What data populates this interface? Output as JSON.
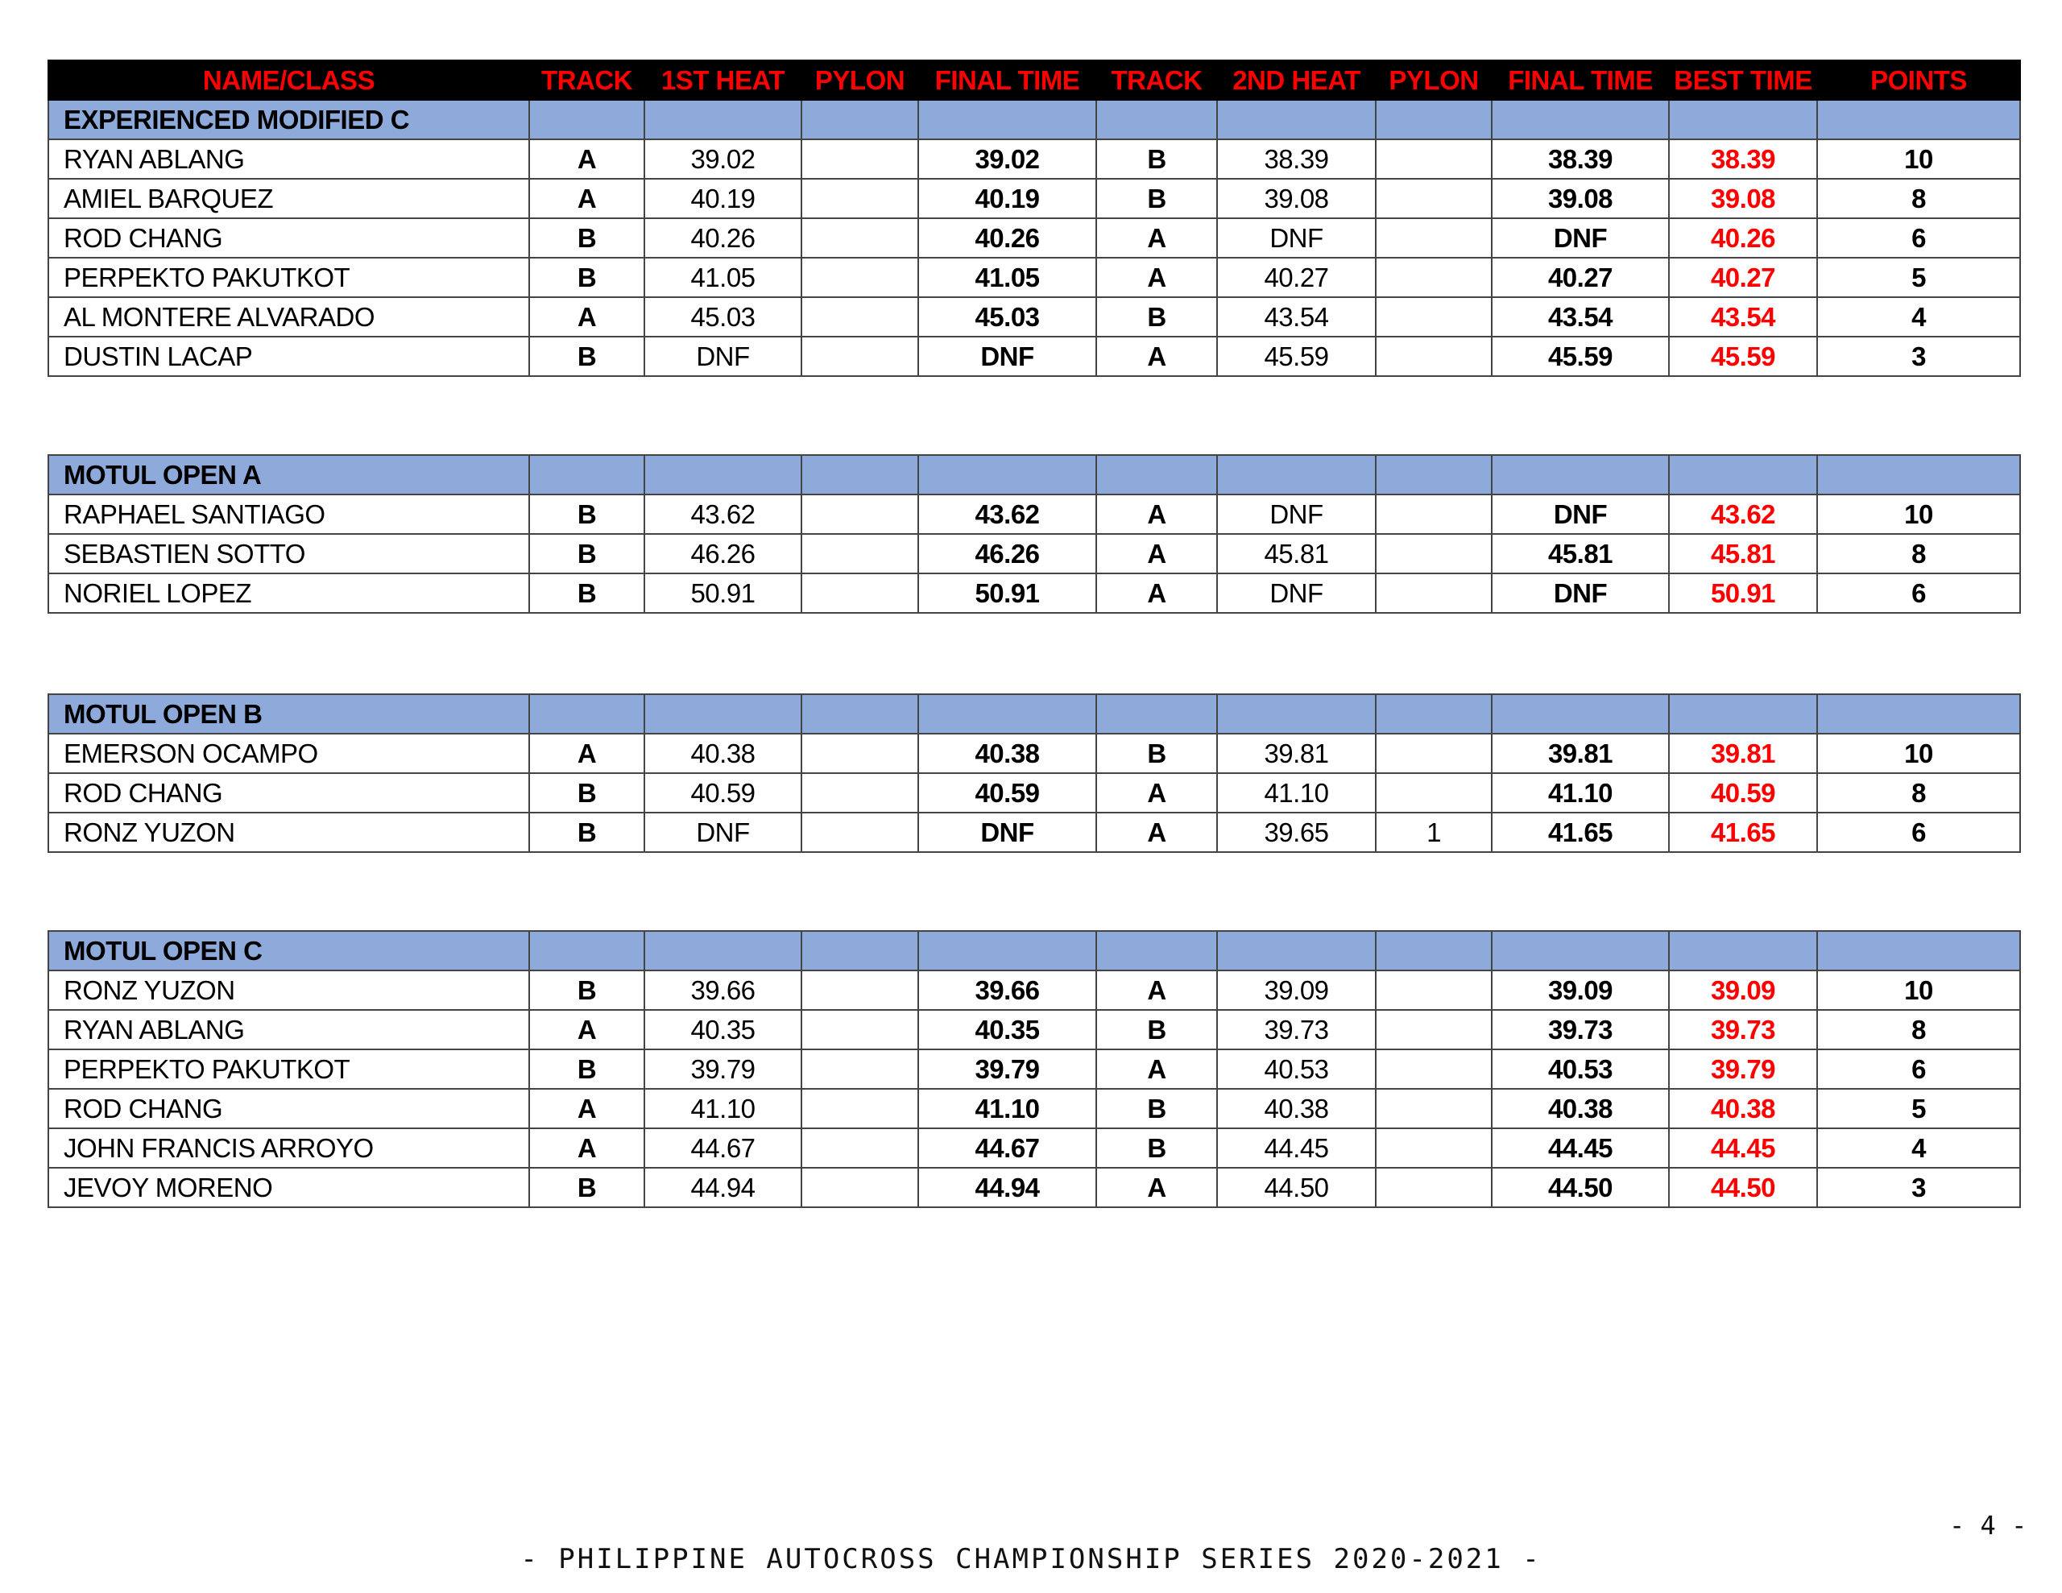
{
  "columns": [
    "NAME/CLASS",
    "TRACK",
    "1ST HEAT",
    "PYLON",
    "FINAL TIME",
    "TRACK",
    "2ND HEAT",
    "PYLON",
    "FINAL TIME",
    "BEST TIME",
    "POINTS"
  ],
  "colors": {
    "header_bg": "#000000",
    "header_text": "#ff0000",
    "section_bg": "#8eaadb",
    "best_time": "#ff0000"
  },
  "sections": [
    {
      "title": "EXPERIENCED MODIFIED C",
      "rows": [
        [
          "RYAN ABLANG",
          "A",
          "39.02",
          "",
          "39.02",
          "B",
          "38.39",
          "",
          "38.39",
          "38.39",
          "10"
        ],
        [
          "AMIEL BARQUEZ",
          "A",
          "40.19",
          "",
          "40.19",
          "B",
          "39.08",
          "",
          "39.08",
          "39.08",
          "8"
        ],
        [
          "ROD CHANG",
          "B",
          "40.26",
          "",
          "40.26",
          "A",
          "DNF",
          "",
          "DNF",
          "40.26",
          "6"
        ],
        [
          "PERPEKTO PAKUTKOT",
          "B",
          "41.05",
          "",
          "41.05",
          "A",
          "40.27",
          "",
          "40.27",
          "40.27",
          "5"
        ],
        [
          "AL MONTERE ALVARADO",
          "A",
          "45.03",
          "",
          "45.03",
          "B",
          "43.54",
          "",
          "43.54",
          "43.54",
          "4"
        ],
        [
          "DUSTIN LACAP",
          "B",
          "DNF",
          "",
          "DNF",
          "A",
          "45.59",
          "",
          "45.59",
          "45.59",
          "3"
        ]
      ]
    },
    {
      "title": "MOTUL OPEN A",
      "rows": [
        [
          "RAPHAEL SANTIAGO",
          "B",
          "43.62",
          "",
          "43.62",
          "A",
          "DNF",
          "",
          "DNF",
          "43.62",
          "10"
        ],
        [
          "SEBASTIEN SOTTO",
          "B",
          "46.26",
          "",
          "46.26",
          "A",
          "45.81",
          "",
          "45.81",
          "45.81",
          "8"
        ],
        [
          "NORIEL LOPEZ",
          "B",
          "50.91",
          "",
          "50.91",
          "A",
          "DNF",
          "",
          "DNF",
          "50.91",
          "6"
        ]
      ]
    },
    {
      "title": "MOTUL OPEN B",
      "rows": [
        [
          "EMERSON OCAMPO",
          "A",
          "40.38",
          "",
          "40.38",
          "B",
          "39.81",
          "",
          "39.81",
          "39.81",
          "10"
        ],
        [
          "ROD CHANG",
          "B",
          "40.59",
          "",
          "40.59",
          "A",
          "41.10",
          "",
          "41.10",
          "40.59",
          "8"
        ],
        [
          "RONZ YUZON",
          "B",
          "DNF",
          "",
          "DNF",
          "A",
          "39.65",
          "1",
          "41.65",
          "41.65",
          "6"
        ]
      ]
    },
    {
      "title": "MOTUL OPEN C",
      "rows": [
        [
          "RONZ YUZON",
          "B",
          "39.66",
          "",
          "39.66",
          "A",
          "39.09",
          "",
          "39.09",
          "39.09",
          "10"
        ],
        [
          "RYAN ABLANG",
          "A",
          "40.35",
          "",
          "40.35",
          "B",
          "39.73",
          "",
          "39.73",
          "39.73",
          "8"
        ],
        [
          "PERPEKTO PAKUTKOT",
          "B",
          "39.79",
          "",
          "39.79",
          "A",
          "40.53",
          "",
          "40.53",
          "39.79",
          "6"
        ],
        [
          "ROD CHANG",
          "A",
          "41.10",
          "",
          "41.10",
          "B",
          "40.38",
          "",
          "40.38",
          "40.38",
          "5"
        ],
        [
          "JOHN FRANCIS ARROYO",
          "A",
          "44.67",
          "",
          "44.67",
          "B",
          "44.45",
          "",
          "44.45",
          "44.45",
          "4"
        ],
        [
          "JEVOY MORENO",
          "B",
          "44.94",
          "",
          "44.94",
          "A",
          "44.50",
          "",
          "44.50",
          "44.50",
          "3"
        ]
      ]
    }
  ],
  "footer": {
    "page_number": "- 4 -",
    "series_title": "- PHILIPPINE AUTOCROSS CHAMPIONSHIP SERIES 2020-2021 -"
  }
}
